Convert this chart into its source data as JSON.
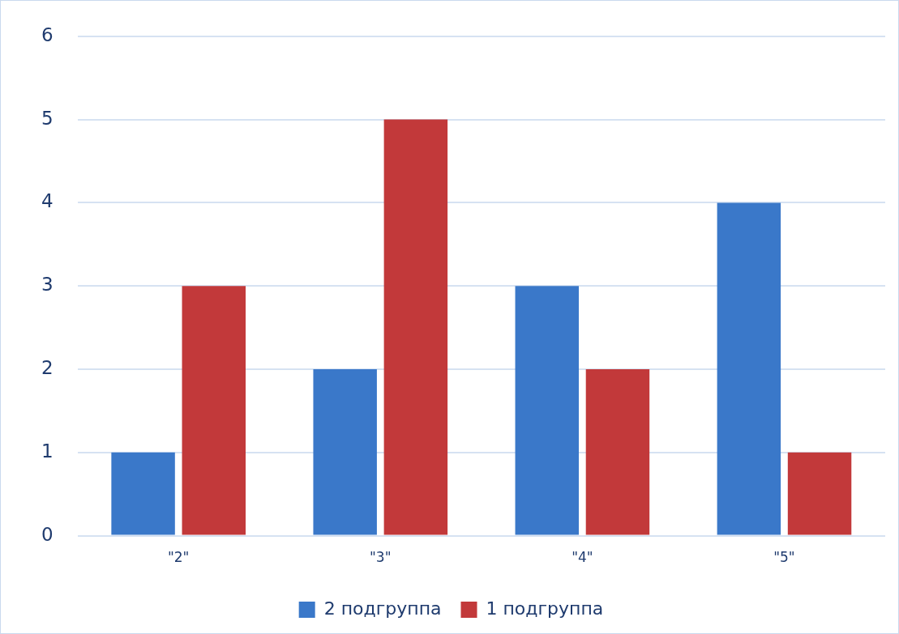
{
  "chart_data": {
    "type": "bar",
    "categories": [
      "\"2\"",
      "\"3\"",
      "\"4\"",
      "\"5\""
    ],
    "series": [
      {
        "name": "2 подгруппа",
        "color": "#3a78c9",
        "values": [
          1,
          2,
          3,
          4
        ]
      },
      {
        "name": "1 подгруппа",
        "color": "#c2393a",
        "values": [
          3,
          5,
          2,
          1
        ]
      }
    ],
    "ylim": [
      0,
      6
    ],
    "yticks": [
      0,
      1,
      2,
      3,
      4,
      5,
      6
    ],
    "grid": "y",
    "legend": "bottom"
  }
}
